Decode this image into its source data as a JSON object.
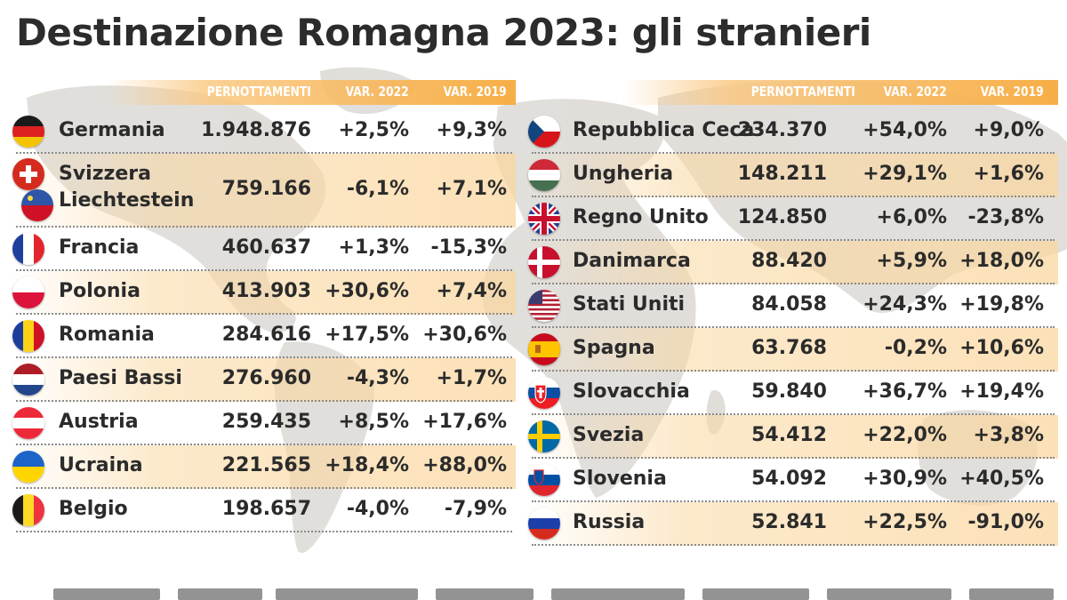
{
  "title": "Destinazione Romagna 2023: gli stranieri",
  "colors": {
    "header_orange": "#f6aa3c",
    "row_shade": "#fad7a0",
    "text": "#2b2b2b",
    "map": "#dedbd7"
  },
  "chart_data": {
    "type": "table",
    "columns": [
      "PERNOTTAMENTI",
      "VAR. 2022",
      "VAR. 2019"
    ],
    "tables": [
      {
        "rows": [
          {
            "country": "Germania",
            "flag": "germany-flag-icon",
            "pernottamenti": "1.948.876",
            "var2022": "+2,5%",
            "var2019": "+9,3%"
          },
          {
            "country": "Svizzera",
            "country2": "Liechtestein",
            "flag": "switzerland-flag-icon",
            "flag2": "liechtenstein-flag-icon",
            "pernottamenti": "759.166",
            "var2022": "-6,1%",
            "var2019": "+7,1%"
          },
          {
            "country": "Francia",
            "flag": "france-flag-icon",
            "pernottamenti": "460.637",
            "var2022": "+1,3%",
            "var2019": "-15,3%"
          },
          {
            "country": "Polonia",
            "flag": "poland-flag-icon",
            "pernottamenti": "413.903",
            "var2022": "+30,6%",
            "var2019": "+7,4%"
          },
          {
            "country": "Romania",
            "flag": "romania-flag-icon",
            "pernottamenti": "284.616",
            "var2022": "+17,5%",
            "var2019": "+30,6%"
          },
          {
            "country": "Paesi Bassi",
            "flag": "netherlands-flag-icon",
            "pernottamenti": "276.960",
            "var2022": "-4,3%",
            "var2019": "+1,7%"
          },
          {
            "country": "Austria",
            "flag": "austria-flag-icon",
            "pernottamenti": "259.435",
            "var2022": "+8,5%",
            "var2019": "+17,6%"
          },
          {
            "country": "Ucraina",
            "flag": "ukraine-flag-icon",
            "pernottamenti": "221.565",
            "var2022": "+18,4%",
            "var2019": "+88,0%"
          },
          {
            "country": "Belgio",
            "flag": "belgium-flag-icon",
            "pernottamenti": "198.657",
            "var2022": "-4,0%",
            "var2019": "-7,9%"
          }
        ]
      },
      {
        "rows": [
          {
            "country": "Repubblica Ceca",
            "flag": "czech-flag-icon",
            "pernottamenti": "234.370",
            "var2022": "+54,0%",
            "var2019": "+9,0%"
          },
          {
            "country": "Ungheria",
            "flag": "hungary-flag-icon",
            "pernottamenti": "148.211",
            "var2022": "+29,1%",
            "var2019": "+1,6%"
          },
          {
            "country": "Regno Unito",
            "flag": "uk-flag-icon",
            "pernottamenti": "124.850",
            "var2022": "+6,0%",
            "var2019": "-23,8%"
          },
          {
            "country": "Danimarca",
            "flag": "denmark-flag-icon",
            "pernottamenti": "88.420",
            "var2022": "+5,9%",
            "var2019": "+18,0%"
          },
          {
            "country": "Stati Uniti",
            "flag": "usa-flag-icon",
            "pernottamenti": "84.058",
            "var2022": "+24,3%",
            "var2019": "+19,8%"
          },
          {
            "country": "Spagna",
            "flag": "spain-flag-icon",
            "pernottamenti": "63.768",
            "var2022": "-0,2%",
            "var2019": "+10,6%"
          },
          {
            "country": "Slovacchia",
            "flag": "slovakia-flag-icon",
            "pernottamenti": "59.840",
            "var2022": "+36,7%",
            "var2019": "+19,4%"
          },
          {
            "country": "Svezia",
            "flag": "sweden-flag-icon",
            "pernottamenti": "54.412",
            "var2022": "+22,0%",
            "var2019": "+3,8%"
          },
          {
            "country": "Slovenia",
            "flag": "slovenia-flag-icon",
            "pernottamenti": "54.092",
            "var2022": "+30,9%",
            "var2019": "+40,5%"
          },
          {
            "country": "Russia",
            "flag": "russia-flag-icon",
            "pernottamenti": "52.841",
            "var2022": "+22,5%",
            "var2019": "-91,0%"
          }
        ]
      }
    ]
  }
}
